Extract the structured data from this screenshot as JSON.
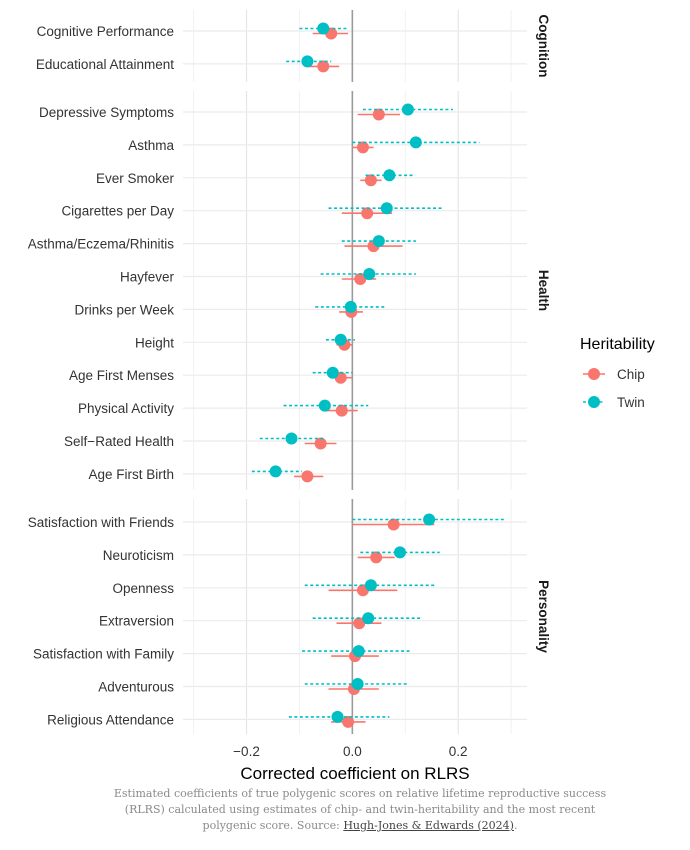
{
  "chart_data": {
    "type": "scatter",
    "subtype": "coefficient-plot",
    "xlabel": "Corrected coefficient on RLRS",
    "xlim": [
      -0.32,
      0.33
    ],
    "xticks": [
      -0.2,
      0.0,
      0.2
    ],
    "xtick_labels": [
      "−0.2",
      "0.0",
      "0.2"
    ],
    "reference_line": 0,
    "grid": true,
    "legend": {
      "title": "Heritability",
      "placement": "right",
      "entries": [
        {
          "key": "chip",
          "label": "Chip",
          "color": "#F8766D",
          "line": "solid"
        },
        {
          "key": "twin",
          "label": "Twin",
          "color": "#00BFC4",
          "line": "dotted"
        }
      ]
    },
    "panels": [
      {
        "label": "Cognition",
        "rows": [
          {
            "label": "Cognitive Performance",
            "chip": [
              -0.04,
              -0.075,
              -0.008
            ],
            "twin": [
              -0.055,
              -0.1,
              -0.01
            ]
          },
          {
            "label": "Educational Attainment",
            "chip": [
              -0.055,
              -0.085,
              -0.025
            ],
            "twin": [
              -0.085,
              -0.125,
              -0.04
            ]
          }
        ]
      },
      {
        "label": "Health",
        "rows": [
          {
            "label": "Depressive Symptoms",
            "chip": [
              0.05,
              0.01,
              0.09
            ],
            "twin": [
              0.105,
              0.02,
              0.19
            ]
          },
          {
            "label": "Asthma",
            "chip": [
              0.02,
              0.0,
              0.04
            ],
            "twin": [
              0.12,
              0.0,
              0.24
            ]
          },
          {
            "label": "Ever Smoker",
            "chip": [
              0.035,
              0.015,
              0.055
            ],
            "twin": [
              0.07,
              0.025,
              0.115
            ]
          },
          {
            "label": "Cigarettes per Day",
            "chip": [
              0.028,
              -0.02,
              0.075
            ],
            "twin": [
              0.065,
              -0.045,
              0.17
            ]
          },
          {
            "label": "Asthma/Eczema/Rhinitis",
            "chip": [
              0.04,
              -0.015,
              0.095
            ],
            "twin": [
              0.05,
              -0.02,
              0.12
            ]
          },
          {
            "label": "Hayfever",
            "chip": [
              0.015,
              -0.02,
              0.045
            ],
            "twin": [
              0.032,
              -0.06,
              0.12
            ]
          },
          {
            "label": "Drinks per Week",
            "chip": [
              -0.002,
              -0.025,
              0.02
            ],
            "twin": [
              -0.003,
              -0.07,
              0.065
            ]
          },
          {
            "label": "Height",
            "chip": [
              -0.015,
              -0.03,
              0.0
            ],
            "twin": [
              -0.022,
              -0.05,
              0.005
            ]
          },
          {
            "label": "Age First Menses",
            "chip": [
              -0.022,
              -0.04,
              0.0
            ],
            "twin": [
              -0.037,
              -0.075,
              0.0
            ]
          },
          {
            "label": "Physical Activity",
            "chip": [
              -0.02,
              -0.055,
              0.01
            ],
            "twin": [
              -0.052,
              -0.13,
              0.03
            ]
          },
          {
            "label": "Self−Rated Health",
            "chip": [
              -0.06,
              -0.09,
              -0.03
            ],
            "twin": [
              -0.115,
              -0.175,
              -0.055
            ]
          },
          {
            "label": "Age First Birth",
            "chip": [
              -0.085,
              -0.11,
              -0.055
            ],
            "twin": [
              -0.145,
              -0.19,
              -0.095
            ]
          }
        ]
      },
      {
        "label": "Personality",
        "rows": [
          {
            "label": "Satisfaction with Friends",
            "chip": [
              0.078,
              0.0,
              0.155
            ],
            "twin": [
              0.145,
              0.0,
              0.29
            ]
          },
          {
            "label": "Neuroticism",
            "chip": [
              0.045,
              0.01,
              0.08
            ],
            "twin": [
              0.09,
              0.015,
              0.165
            ]
          },
          {
            "label": "Openness",
            "chip": [
              0.02,
              -0.045,
              0.085
            ],
            "twin": [
              0.035,
              -0.09,
              0.155
            ]
          },
          {
            "label": "Extraversion",
            "chip": [
              0.013,
              -0.03,
              0.055
            ],
            "twin": [
              0.03,
              -0.075,
              0.13
            ]
          },
          {
            "label": "Satisfaction with Family",
            "chip": [
              0.005,
              -0.04,
              0.05
            ],
            "twin": [
              0.012,
              -0.095,
              0.11
            ]
          },
          {
            "label": "Adventurous",
            "chip": [
              0.003,
              -0.045,
              0.05
            ],
            "twin": [
              0.01,
              -0.09,
              0.105
            ]
          },
          {
            "label": "Religious Attendance",
            "chip": [
              -0.008,
              -0.04,
              0.025
            ],
            "twin": [
              -0.028,
              -0.12,
              0.07
            ]
          }
        ]
      }
    ]
  },
  "caption": {
    "text": "Estimated coefficients of true polygenic scores on relative lifetime reproductive success (RLRS) calculated using estimates of chip- and twin-heritability and the most recent polygenic score. Source: ",
    "source": "Hugh-Jones & Edwards (2024)",
    "end": "."
  }
}
